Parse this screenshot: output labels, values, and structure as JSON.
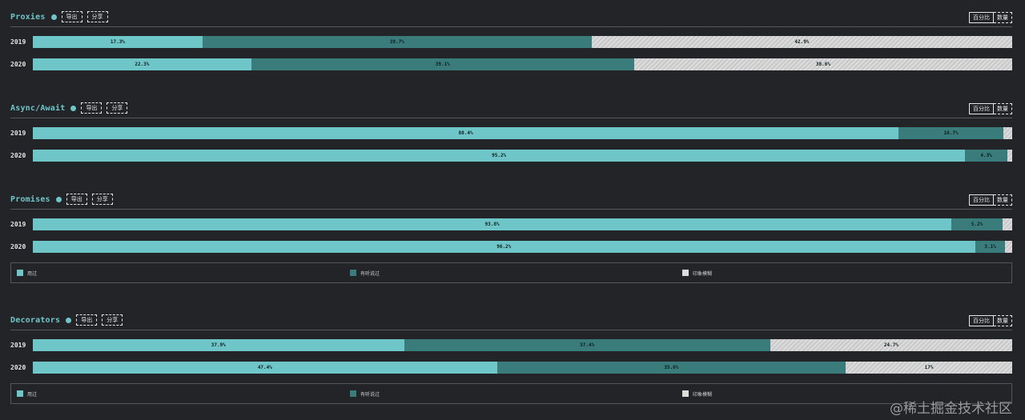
{
  "colors": {
    "used": "#6fc6c9",
    "heard": "#3a7b7b",
    "vague": "#dcdcdc",
    "vague_hatch": "#c9c9c9"
  },
  "toggle": {
    "percent_label": "百分比",
    "count_label": "数量"
  },
  "buttons": {
    "export_label": "导出",
    "share_label": "分享"
  },
  "legend": {
    "items": [
      "用过",
      "有听说过",
      "印象模糊"
    ]
  },
  "watermark": "@稀土掘金技术社区",
  "chart_data": [
    {
      "type": "bar",
      "title": "Proxies",
      "categories": [
        "2019",
        "2020"
      ],
      "stacked": true,
      "horizontal": true,
      "series": [
        {
          "name": "用过",
          "values": [
            17.3,
            22.3
          ]
        },
        {
          "name": "有听说过",
          "values": [
            39.7,
            39.1
          ]
        },
        {
          "name": "印象模糊",
          "values": [
            42.9,
            38.6
          ]
        }
      ],
      "labels": [
        [
          "17.3%",
          "39.7%",
          "42.9%"
        ],
        [
          "22.3%",
          "39.1%",
          "38.6%"
        ]
      ]
    },
    {
      "type": "bar",
      "title": "Async/Await",
      "categories": [
        "2019",
        "2020"
      ],
      "stacked": true,
      "horizontal": true,
      "series": [
        {
          "name": "用过",
          "values": [
            88.4,
            95.2
          ]
        },
        {
          "name": "有听说过",
          "values": [
            10.7,
            4.3
          ]
        },
        {
          "name": "印象模糊",
          "values": [
            0.9,
            0.5
          ]
        }
      ],
      "labels": [
        [
          "88.4%",
          "10.7%",
          ""
        ],
        [
          "95.2%",
          "4.3%",
          ""
        ]
      ]
    },
    {
      "type": "bar",
      "title": "Promises",
      "categories": [
        "2019",
        "2020"
      ],
      "stacked": true,
      "horizontal": true,
      "series": [
        {
          "name": "用过",
          "values": [
            93.8,
            96.2
          ]
        },
        {
          "name": "有听说过",
          "values": [
            5.2,
            3.1
          ]
        },
        {
          "name": "印象模糊",
          "values": [
            1.0,
            0.7
          ]
        }
      ],
      "labels": [
        [
          "93.8%",
          "5.2%",
          ""
        ],
        [
          "96.2%",
          "3.1%",
          ""
        ]
      ]
    },
    {
      "type": "bar",
      "title": "Decorators",
      "categories": [
        "2019",
        "2020"
      ],
      "stacked": true,
      "horizontal": true,
      "series": [
        {
          "name": "用过",
          "values": [
            37.9,
            47.4
          ]
        },
        {
          "name": "有听说过",
          "values": [
            37.4,
            35.6
          ]
        },
        {
          "name": "印象模糊",
          "values": [
            24.7,
            17
          ]
        }
      ],
      "labels": [
        [
          "37.9%",
          "37.4%",
          "24.7%"
        ],
        [
          "47.4%",
          "35.6%",
          "17%"
        ]
      ]
    }
  ]
}
